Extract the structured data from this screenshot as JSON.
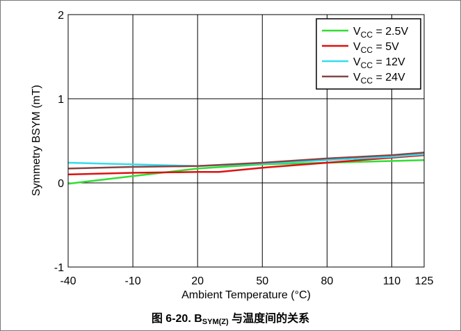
{
  "chart_data": {
    "type": "line",
    "title": "",
    "xlabel": "Ambient Temperature (°C)",
    "ylabel": "Symmetry BSYM (mT)",
    "xlim": [
      -40,
      125
    ],
    "ylim": [
      -1,
      2
    ],
    "x_ticks": [
      -40,
      -10,
      20,
      50,
      80,
      110,
      125
    ],
    "y_ticks": [
      -1,
      0,
      1,
      2
    ],
    "grid": true,
    "legend_position": "top-right",
    "series": [
      {
        "name": "V_CC = 2.5V",
        "label_main": "V",
        "label_sub": "CC",
        "label_rest": " = 2.5V",
        "color": "#33dd33",
        "x": [
          -40,
          -10,
          20,
          50,
          80,
          110,
          125
        ],
        "y": [
          -0.01,
          0.08,
          0.17,
          0.22,
          0.24,
          0.26,
          0.27
        ]
      },
      {
        "name": "V_CC = 5V",
        "label_main": "V",
        "label_sub": "CC",
        "label_rest": " = 5V",
        "color": "#dd1111",
        "x": [
          -40,
          -10,
          20,
          30,
          50,
          80,
          110,
          125
        ],
        "y": [
          0.1,
          0.12,
          0.13,
          0.13,
          0.18,
          0.24,
          0.3,
          0.33
        ]
      },
      {
        "name": "V_CC = 12V",
        "label_main": "V",
        "label_sub": "CC",
        "label_rest": " = 12V",
        "color": "#33ddee",
        "x": [
          -40,
          -10,
          20,
          50,
          80,
          110,
          125
        ],
        "y": [
          0.24,
          0.22,
          0.2,
          0.23,
          0.27,
          0.31,
          0.34
        ]
      },
      {
        "name": "V_CC = 24V",
        "label_main": "V",
        "label_sub": "CC",
        "label_rest": " = 24V",
        "color": "#884444",
        "x": [
          -40,
          -10,
          20,
          50,
          80,
          110,
          125
        ],
        "y": [
          0.17,
          0.19,
          0.2,
          0.24,
          0.29,
          0.33,
          0.36
        ]
      }
    ]
  },
  "caption": {
    "prefix": "图 6-20. B",
    "sub": "SYM(Z)",
    "suffix": " 与温度间的关系"
  }
}
